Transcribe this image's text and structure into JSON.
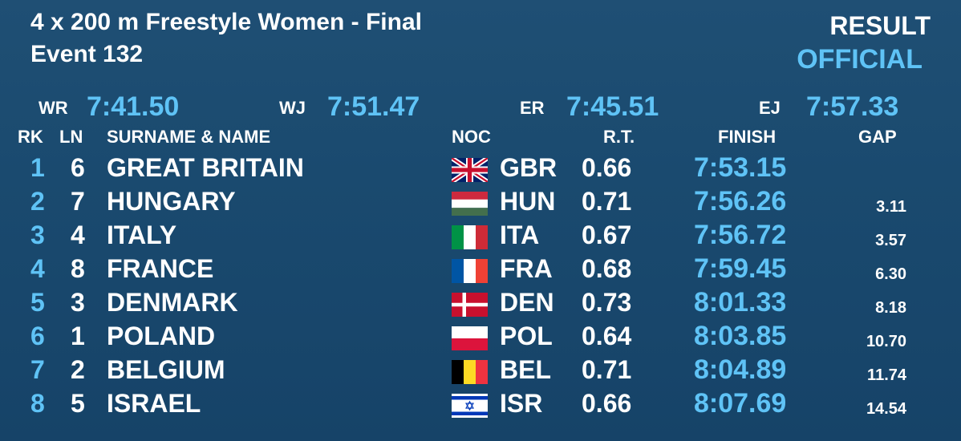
{
  "header": {
    "title": "4 x 200 m Freestyle Women - Final",
    "event": "Event 132",
    "result": "RESULT",
    "status": "OFFICIAL"
  },
  "records": [
    {
      "label": "WR",
      "time": "7:41.50"
    },
    {
      "label": "WJ",
      "time": "7:51.47"
    },
    {
      "label": "ER",
      "time": "7:45.51"
    },
    {
      "label": "EJ",
      "time": "7:57.33"
    }
  ],
  "table": {
    "columns": {
      "rank": "RK",
      "lane": "LN",
      "name": "SURNAME & NAME",
      "noc": "NOC",
      "rt": "R.T.",
      "finish": "FINISH",
      "gap": "GAP"
    },
    "rows": [
      {
        "rank": "1",
        "lane": "6",
        "name": "GREAT BRITAIN",
        "noc": "GBR",
        "rt": "0.66",
        "finish": "7:53.15"
      },
      {
        "rank": "2",
        "lane": "7",
        "name": "HUNGARY",
        "noc": "HUN",
        "rt": "0.71",
        "finish": "7:56.26",
        "gap": "3.11"
      },
      {
        "rank": "3",
        "lane": "4",
        "name": "ITALY",
        "noc": "ITA",
        "rt": "0.67",
        "finish": "7:56.72",
        "gap": "3.57"
      },
      {
        "rank": "4",
        "lane": "8",
        "name": "FRANCE",
        "noc": "FRA",
        "rt": "0.68",
        "finish": "7:59.45",
        "gap": "6.30"
      },
      {
        "rank": "5",
        "lane": "3",
        "name": "DENMARK",
        "noc": "DEN",
        "rt": "0.73",
        "finish": "8:01.33",
        "gap": "8.18"
      },
      {
        "rank": "6",
        "lane": "1",
        "name": "POLAND",
        "noc": "POL",
        "rt": "0.64",
        "finish": "8:03.85",
        "gap": "10.70"
      },
      {
        "rank": "7",
        "lane": "2",
        "name": "BELGIUM",
        "noc": "BEL",
        "rt": "0.71",
        "finish": "8:04.89",
        "gap": "11.74"
      },
      {
        "rank": "8",
        "lane": "5",
        "name": "ISRAEL",
        "noc": "ISR",
        "rt": "0.66",
        "finish": "8:07.69",
        "gap": "14.54"
      }
    ]
  }
}
